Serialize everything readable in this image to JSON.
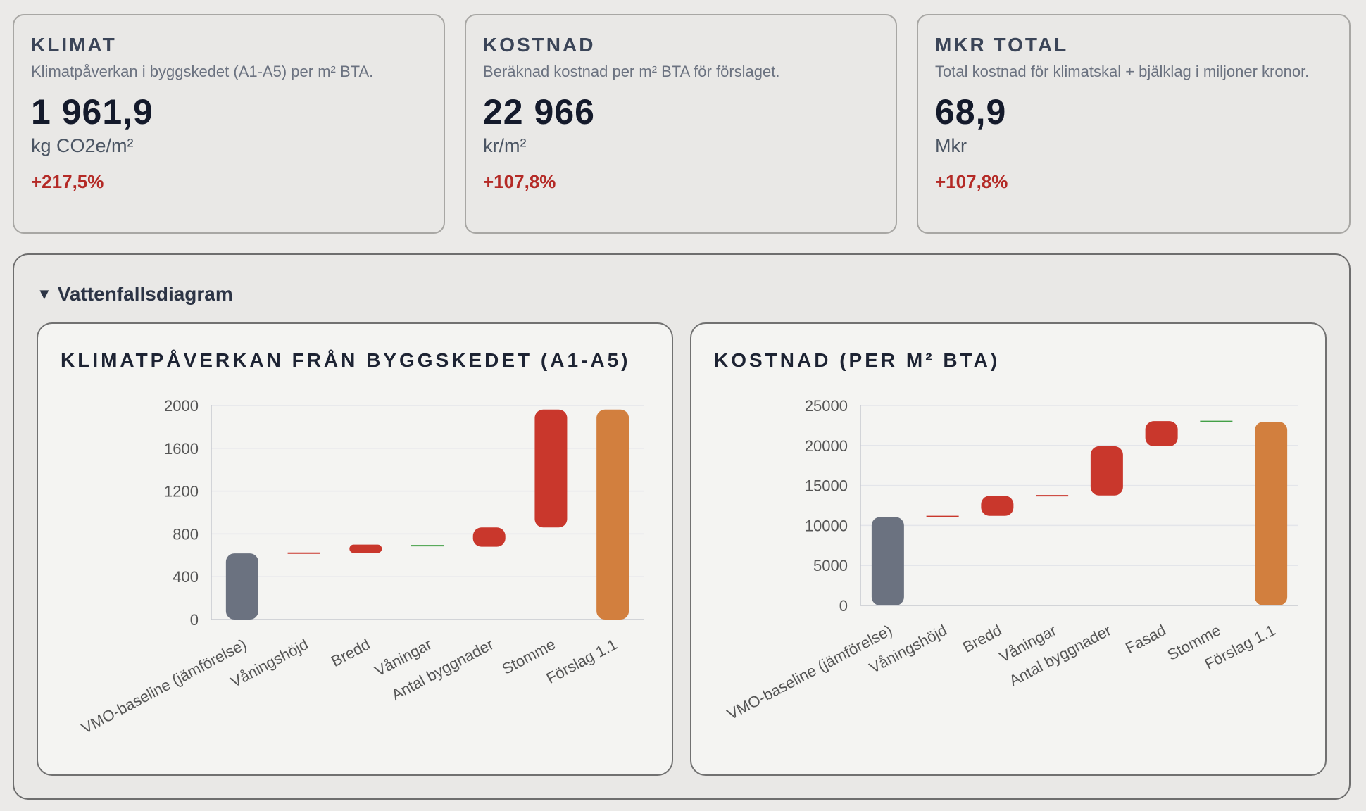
{
  "cards": [
    {
      "title": "KLIMAT",
      "desc": "Klimatpåverkan i byggskedet (A1-A5) per m² BTA.",
      "value": "1 961,9",
      "unit": "kg CO2e/m²",
      "delta": "+217,5%"
    },
    {
      "title": "KOSTNAD",
      "desc": "Beräknad kostnad per m² BTA för förslaget.",
      "value": "22 966",
      "unit": "kr/m²",
      "delta": "+107,8%"
    },
    {
      "title": "MKR TOTAL",
      "desc": "Total kostnad för klimatskal + bjälklag i miljoner kronor.",
      "value": "68,9",
      "unit": "Mkr",
      "delta": "+107,8%"
    }
  ],
  "panel": {
    "toggle": "▼",
    "label": "Vattenfallsdiagram"
  },
  "colors": {
    "baseline": "#6b7280",
    "increase": "#c9372c",
    "decrease": "#43a047",
    "total": "#d27f3e"
  },
  "chart_data": [
    {
      "type": "bar",
      "subtype": "waterfall",
      "title": "KLIMATPÅVERKAN FRÅN BYGGSKEDET (A1-A5)",
      "categories": [
        "VMO-baseline (jämförelse)",
        "Våningshöjd",
        "Bredd",
        "Våningar",
        "Antal byggnader",
        "Stomme",
        "Förslag 1.1"
      ],
      "ranges": [
        [
          0,
          618
        ],
        [
          618,
          622
        ],
        [
          622,
          700
        ],
        [
          700,
          680
        ],
        [
          680,
          860
        ],
        [
          860,
          1962
        ],
        [
          0,
          1962
        ]
      ],
      "kinds": [
        "baseline",
        "increase",
        "increase",
        "decrease",
        "increase",
        "increase",
        "total"
      ],
      "ylim": [
        0,
        2000
      ],
      "yticks": [
        0,
        400,
        800,
        1200,
        1600,
        2000
      ],
      "ytick_labels": [
        "0",
        "400",
        "800",
        "1200",
        "1600",
        "2000"
      ],
      "grid": true
    },
    {
      "type": "bar",
      "subtype": "waterfall",
      "title": "KOSTNAD (PER M² BTA)",
      "categories": [
        "VMO-baseline (jämförelse)",
        "Våningshöjd",
        "Bredd",
        "Våningar",
        "Antal byggnader",
        "Fasad",
        "Stomme",
        "Förslag 1.1"
      ],
      "ranges": [
        [
          0,
          11050
        ],
        [
          11050,
          11200
        ],
        [
          11200,
          13700
        ],
        [
          13700,
          13750
        ],
        [
          13750,
          19900
        ],
        [
          19900,
          23050
        ],
        [
          23050,
          22966
        ],
        [
          0,
          22966
        ]
      ],
      "kinds": [
        "baseline",
        "increase",
        "increase",
        "increase",
        "increase",
        "increase",
        "decrease",
        "total"
      ],
      "ylim": [
        0,
        25000
      ],
      "yticks": [
        0,
        5000,
        10000,
        15000,
        20000,
        25000
      ],
      "ytick_labels": [
        "0",
        "5000",
        "10000",
        "15000",
        "20000",
        "25000"
      ],
      "grid": true
    }
  ]
}
